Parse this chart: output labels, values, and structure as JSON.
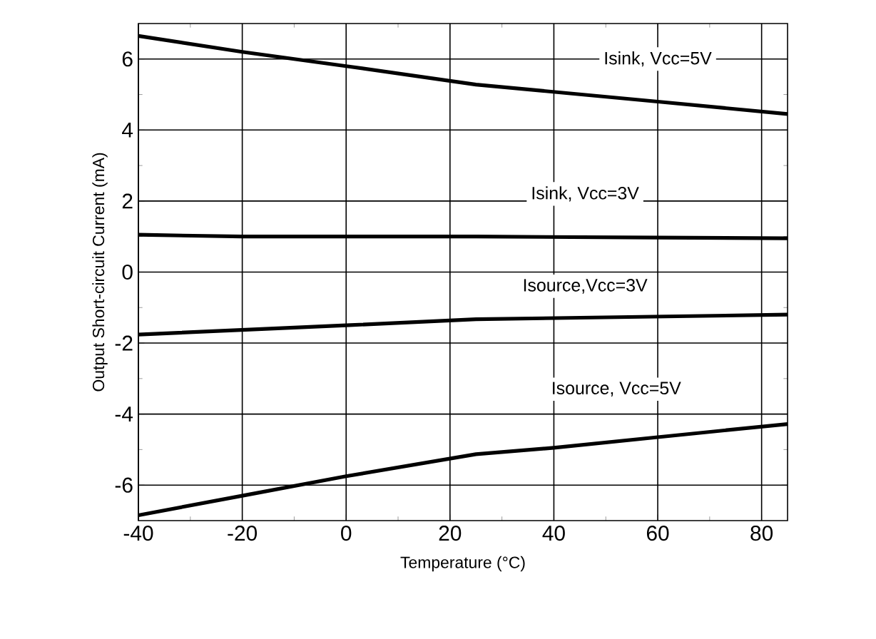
{
  "chart_data": {
    "type": "line",
    "xlabel": "Temperature (°C)",
    "ylabel": "Output Short-circuit Current (mA)",
    "xlim": [
      -40,
      85
    ],
    "xticks": [
      -40,
      -20,
      0,
      20,
      40,
      60,
      80
    ],
    "ylim": [
      -7,
      7
    ],
    "yticks": [
      -6,
      -4,
      -2,
      0,
      2,
      4,
      6
    ],
    "grid": true,
    "marker": "none",
    "line_style": "solid",
    "series": [
      {
        "name": "Isink, Vcc=5V",
        "color": "#000000",
        "x": [
          -40,
          -20,
          0,
          25,
          60,
          85
        ],
        "values": [
          6.65,
          6.2,
          5.8,
          5.28,
          4.8,
          4.45
        ]
      },
      {
        "name": "Isink, Vcc=3V",
        "color": "#000000",
        "x": [
          -40,
          -20,
          0,
          25,
          60,
          85
        ],
        "values": [
          1.05,
          1.0,
          1.0,
          1.0,
          0.97,
          0.95
        ]
      },
      {
        "name": "Isource,Vcc=3V",
        "color": "#000000",
        "x": [
          -40,
          0,
          25,
          85
        ],
        "values": [
          -1.76,
          -1.5,
          -1.33,
          -1.2
        ]
      },
      {
        "name": "Isource, Vcc=5V",
        "color": "#000000",
        "x": [
          -40,
          -20,
          0,
          25,
          40,
          60,
          85
        ],
        "values": [
          -6.85,
          -6.3,
          -5.75,
          -5.13,
          -4.95,
          -4.65,
          -4.28
        ]
      }
    ]
  }
}
